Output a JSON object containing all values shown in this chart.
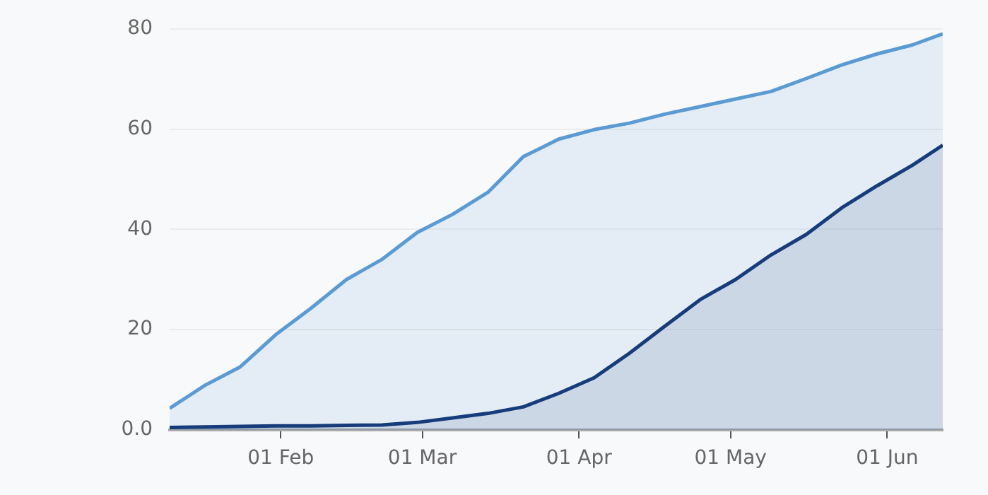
{
  "chart_data": {
    "type": "area",
    "x": [
      "--01-10",
      "--01-17",
      "--01-24",
      "--01-31",
      "--02-07",
      "--02-14",
      "--02-21",
      "--02-28",
      "--03-07",
      "--03-14",
      "--03-21",
      "--03-28",
      "--04-04",
      "--04-11",
      "--04-18",
      "--04-25",
      "--05-02",
      "--05-09",
      "--05-16",
      "--05-23",
      "--05-30",
      "--06-06",
      "--06-12"
    ],
    "series": [
      {
        "color": "#5b9bd3",
        "values": [
          4.3,
          8.9,
          12.6,
          19.0,
          24.3,
          30.0,
          34.0,
          39.4,
          43.0,
          47.4,
          54.5,
          58.0,
          59.9,
          61.2,
          63.0,
          64.5,
          66.0,
          67.5,
          70.1,
          72.8,
          75.0,
          76.8,
          79.0
        ]
      },
      {
        "color": "#0d2f6f",
        "values": [
          0.5,
          0.6,
          0.7,
          0.8,
          0.8,
          0.9,
          1.0,
          1.5,
          2.4,
          3.3,
          4.6,
          7.3,
          10.4,
          15.3,
          20.7,
          26.0,
          30.0,
          34.9,
          39.0,
          44.3,
          48.7,
          52.8,
          56.8
        ]
      }
    ],
    "xlim": [
      "--01-10",
      "--06-12"
    ],
    "xticks": [
      {
        "value": "--02-01",
        "label": "01 Feb"
      },
      {
        "value": "--03-01",
        "label": "01 Mar"
      },
      {
        "value": "--04-01",
        "label": "01 Apr"
      },
      {
        "value": "--05-01",
        "label": "01 May"
      },
      {
        "value": "--06-01",
        "label": "01 Jun"
      }
    ],
    "ylim": [
      0,
      80
    ],
    "yticks": [
      {
        "value": 0,
        "label": "0.0"
      },
      20,
      40,
      60,
      80
    ],
    "grid": "y",
    "legend": false,
    "marker": "none"
  }
}
